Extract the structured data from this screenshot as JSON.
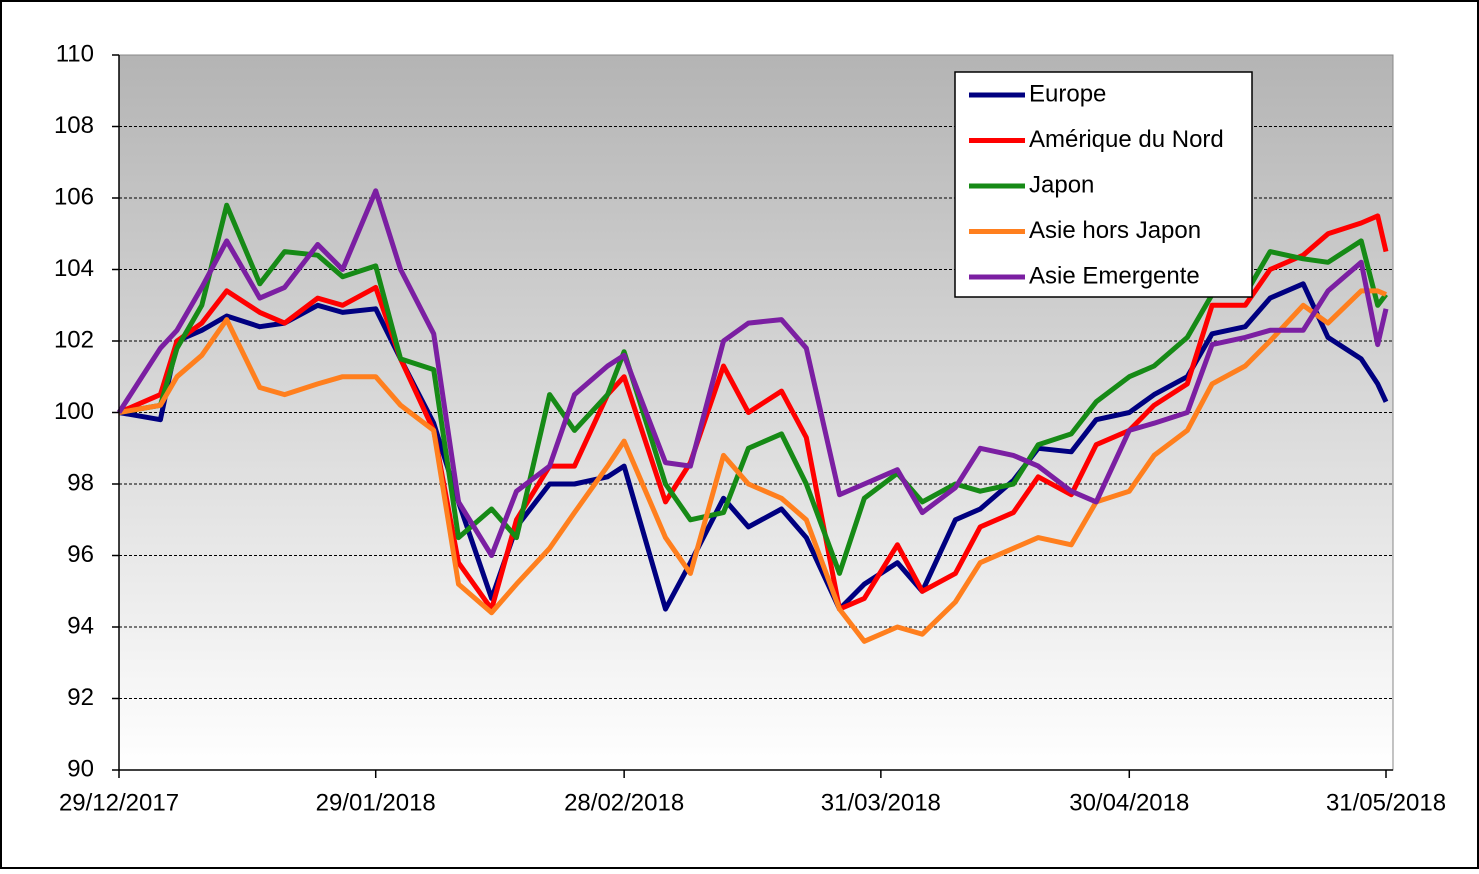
{
  "chart_data": {
    "type": "line",
    "x": [
      "29/12/2017",
      "03/01/2018",
      "05/01/2018",
      "08/01/2018",
      "11/01/2018",
      "15/01/2018",
      "18/01/2018",
      "22/01/2018",
      "25/01/2018",
      "29/01/2018",
      "01/02/2018",
      "05/02/2018",
      "08/02/2018",
      "12/02/2018",
      "15/02/2018",
      "19/02/2018",
      "22/02/2018",
      "26/02/2018",
      "28/02/2018",
      "05/03/2018",
      "08/03/2018",
      "12/03/2018",
      "15/03/2018",
      "19/03/2018",
      "22/03/2018",
      "26/03/2018",
      "29/03/2018",
      "02/04/2018",
      "05/04/2018",
      "09/04/2018",
      "12/04/2018",
      "16/04/2018",
      "19/04/2018",
      "23/04/2018",
      "26/04/2018",
      "30/04/2018",
      "03/05/2018",
      "07/05/2018",
      "10/05/2018",
      "14/05/2018",
      "17/05/2018",
      "21/05/2018",
      "24/05/2018",
      "28/05/2018",
      "30/05/2018",
      "31/05/2018"
    ],
    "series": [
      {
        "name": "Europe",
        "color": "#000080",
        "values": [
          100,
          99.8,
          102.0,
          102.3,
          102.7,
          102.4,
          102.5,
          103.0,
          102.8,
          102.9,
          101.5,
          99.7,
          97.5,
          94.8,
          96.8,
          98.0,
          98.0,
          98.2,
          98.5,
          94.5,
          95.8,
          97.6,
          96.8,
          97.3,
          96.5,
          94.5,
          95.2,
          95.8,
          95.0,
          97.0,
          97.3,
          98.1,
          99.0,
          98.9,
          99.8,
          100.0,
          100.5,
          101.0,
          102.2,
          102.4,
          103.2,
          103.6,
          102.1,
          101.5,
          100.8,
          100.3
        ]
      },
      {
        "name": "Amérique du Nord",
        "color": "#ff0000",
        "values": [
          100,
          100.5,
          102.0,
          102.5,
          103.4,
          102.8,
          102.5,
          103.2,
          103.0,
          103.5,
          101.5,
          99.5,
          95.8,
          94.5,
          97.0,
          98.5,
          98.5,
          100.5,
          101.0,
          97.5,
          98.6,
          101.3,
          100.0,
          100.6,
          99.3,
          94.5,
          94.8,
          96.3,
          95.0,
          95.5,
          96.8,
          97.2,
          98.2,
          97.7,
          99.1,
          99.5,
          100.2,
          100.8,
          103.0,
          103.0,
          104.0,
          104.4,
          105.0,
          105.3,
          105.5,
          104.5
        ]
      },
      {
        "name": "Japon",
        "color": "#168a16",
        "values": [
          100,
          100.2,
          101.8,
          103.0,
          105.8,
          103.6,
          104.5,
          104.4,
          103.8,
          104.1,
          101.5,
          101.2,
          96.5,
          97.3,
          96.5,
          100.5,
          99.5,
          100.5,
          101.7,
          98.0,
          97.0,
          97.2,
          99.0,
          99.4,
          98.0,
          95.5,
          97.6,
          98.3,
          97.5,
          98.0,
          97.8,
          98.0,
          99.1,
          99.4,
          100.3,
          101.0,
          101.3,
          102.1,
          103.3,
          103.3,
          104.5,
          104.3,
          104.2,
          104.8,
          103.0,
          103.3
        ]
      },
      {
        "name": "Asie hors Japon",
        "color": "#ff7f1e",
        "values": [
          100,
          100.2,
          101.0,
          101.6,
          102.6,
          100.7,
          100.5,
          100.8,
          101.0,
          101.0,
          100.2,
          99.5,
          95.2,
          94.4,
          95.2,
          96.2,
          97.2,
          98.5,
          99.2,
          96.5,
          95.5,
          98.8,
          98.0,
          97.6,
          97.0,
          94.5,
          93.6,
          94.0,
          93.8,
          94.7,
          95.8,
          96.2,
          96.5,
          96.3,
          97.5,
          97.8,
          98.8,
          99.5,
          100.8,
          101.3,
          102.0,
          103.0,
          102.5,
          103.4,
          103.4,
          103.3
        ]
      },
      {
        "name": "Asie Emergente",
        "color": "#7b1fa2",
        "values": [
          100,
          101.8,
          102.3,
          103.5,
          104.8,
          103.2,
          103.5,
          104.7,
          104.0,
          106.2,
          104.0,
          102.2,
          97.5,
          96.0,
          97.8,
          98.5,
          100.5,
          101.3,
          101.6,
          98.6,
          98.5,
          102.0,
          102.5,
          102.6,
          101.8,
          97.7,
          98.0,
          98.4,
          97.2,
          97.9,
          99.0,
          98.8,
          98.5,
          97.8,
          97.5,
          99.5,
          99.7,
          100.0,
          101.9,
          102.1,
          102.3,
          102.3,
          103.4,
          104.2,
          101.9,
          102.9
        ]
      }
    ],
    "xlim": [
      "29/12/2017",
      "31/05/2018"
    ],
    "xticks": [
      "29/12/2017",
      "29/01/2018",
      "28/02/2018",
      "31/03/2018",
      "30/04/2018",
      "31/05/2018"
    ],
    "ylim": [
      90,
      110
    ],
    "yticks": [
      90,
      92,
      94,
      96,
      98,
      100,
      102,
      104,
      106,
      108,
      110
    ],
    "grid": true,
    "legend": "upper right"
  }
}
